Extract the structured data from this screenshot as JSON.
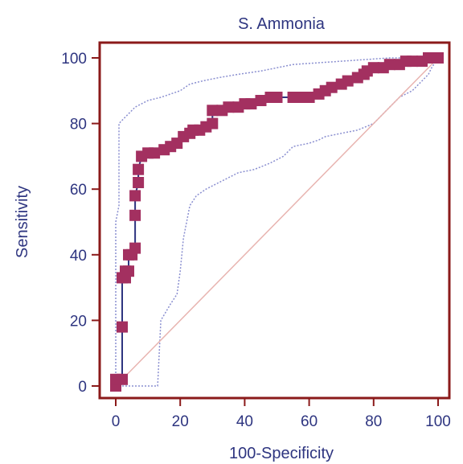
{
  "chart_data": {
    "type": "line",
    "title": "S. Ammonia",
    "xlabel": "100-Specificity",
    "ylabel": "Sensitivity",
    "xlim": [
      0,
      100
    ],
    "ylim": [
      0,
      100
    ],
    "xticks": [
      "0",
      "20",
      "40",
      "60",
      "80",
      "100"
    ],
    "yticks": [
      "0",
      "20",
      "40",
      "60",
      "80",
      "100"
    ],
    "colors": {
      "roc": "#a33060",
      "roc_line": "#2e3580",
      "ci": "#8a8fd0",
      "diagonal": "#e8b4b0",
      "frame": "#8b1a1a",
      "text": "#2e3580"
    },
    "series": [
      {
        "name": "",
        "role": "roc",
        "x": [
          0,
          0,
          2,
          2,
          2,
          3,
          3,
          4,
          4,
          5,
          6,
          6,
          6,
          7,
          7,
          8,
          10,
          12,
          15,
          17,
          19,
          21,
          23,
          24,
          26,
          28,
          30,
          30,
          33,
          35,
          38,
          40,
          42,
          45,
          48,
          50,
          55,
          58,
          60,
          63,
          65,
          67,
          70,
          72,
          75,
          77,
          78,
          80,
          83,
          85,
          88,
          90,
          92,
          95,
          97,
          100
        ],
        "y": [
          0,
          2,
          2,
          18,
          33,
          33,
          35,
          35,
          40,
          40,
          42,
          52,
          58,
          62,
          66,
          70,
          71,
          71,
          72,
          73,
          74,
          76,
          77,
          78,
          78,
          79,
          80,
          84,
          84,
          85,
          85,
          86,
          86,
          87,
          88,
          88,
          88,
          88,
          88,
          89,
          90,
          91,
          92,
          93,
          94,
          95,
          96,
          97,
          97,
          98,
          98,
          99,
          99,
          99,
          100,
          100
        ]
      },
      {
        "name": "",
        "role": "ci-upper",
        "x": [
          0,
          0,
          1,
          1,
          1,
          2,
          3,
          4,
          5,
          6,
          8,
          10,
          14,
          17,
          20,
          23,
          27,
          32,
          38,
          45,
          55,
          70,
          85,
          100
        ],
        "y": [
          0,
          50,
          55,
          75,
          80,
          81,
          82,
          83,
          84,
          85,
          86,
          87,
          88,
          89,
          90,
          92,
          93,
          94,
          95,
          96,
          98,
          99,
          100,
          100
        ]
      },
      {
        "name": "",
        "role": "ci-lower",
        "x": [
          0,
          4,
          13,
          14,
          17,
          19,
          20,
          21,
          22,
          23,
          25,
          28,
          32,
          38,
          43,
          48,
          52,
          55,
          60,
          63,
          65,
          70,
          75,
          80,
          85,
          88,
          92,
          95,
          97,
          98,
          100
        ],
        "y": [
          0,
          0,
          0,
          20,
          25,
          28,
          35,
          45,
          50,
          55,
          58,
          60,
          62,
          65,
          66,
          68,
          70,
          73,
          74,
          75,
          76,
          77,
          78,
          80,
          85,
          88,
          90,
          93,
          95,
          97,
          100
        ]
      },
      {
        "name": "",
        "role": "diagonal",
        "x": [
          0,
          100
        ],
        "y": [
          0,
          100
        ]
      }
    ],
    "grid": false,
    "legend": "none"
  }
}
